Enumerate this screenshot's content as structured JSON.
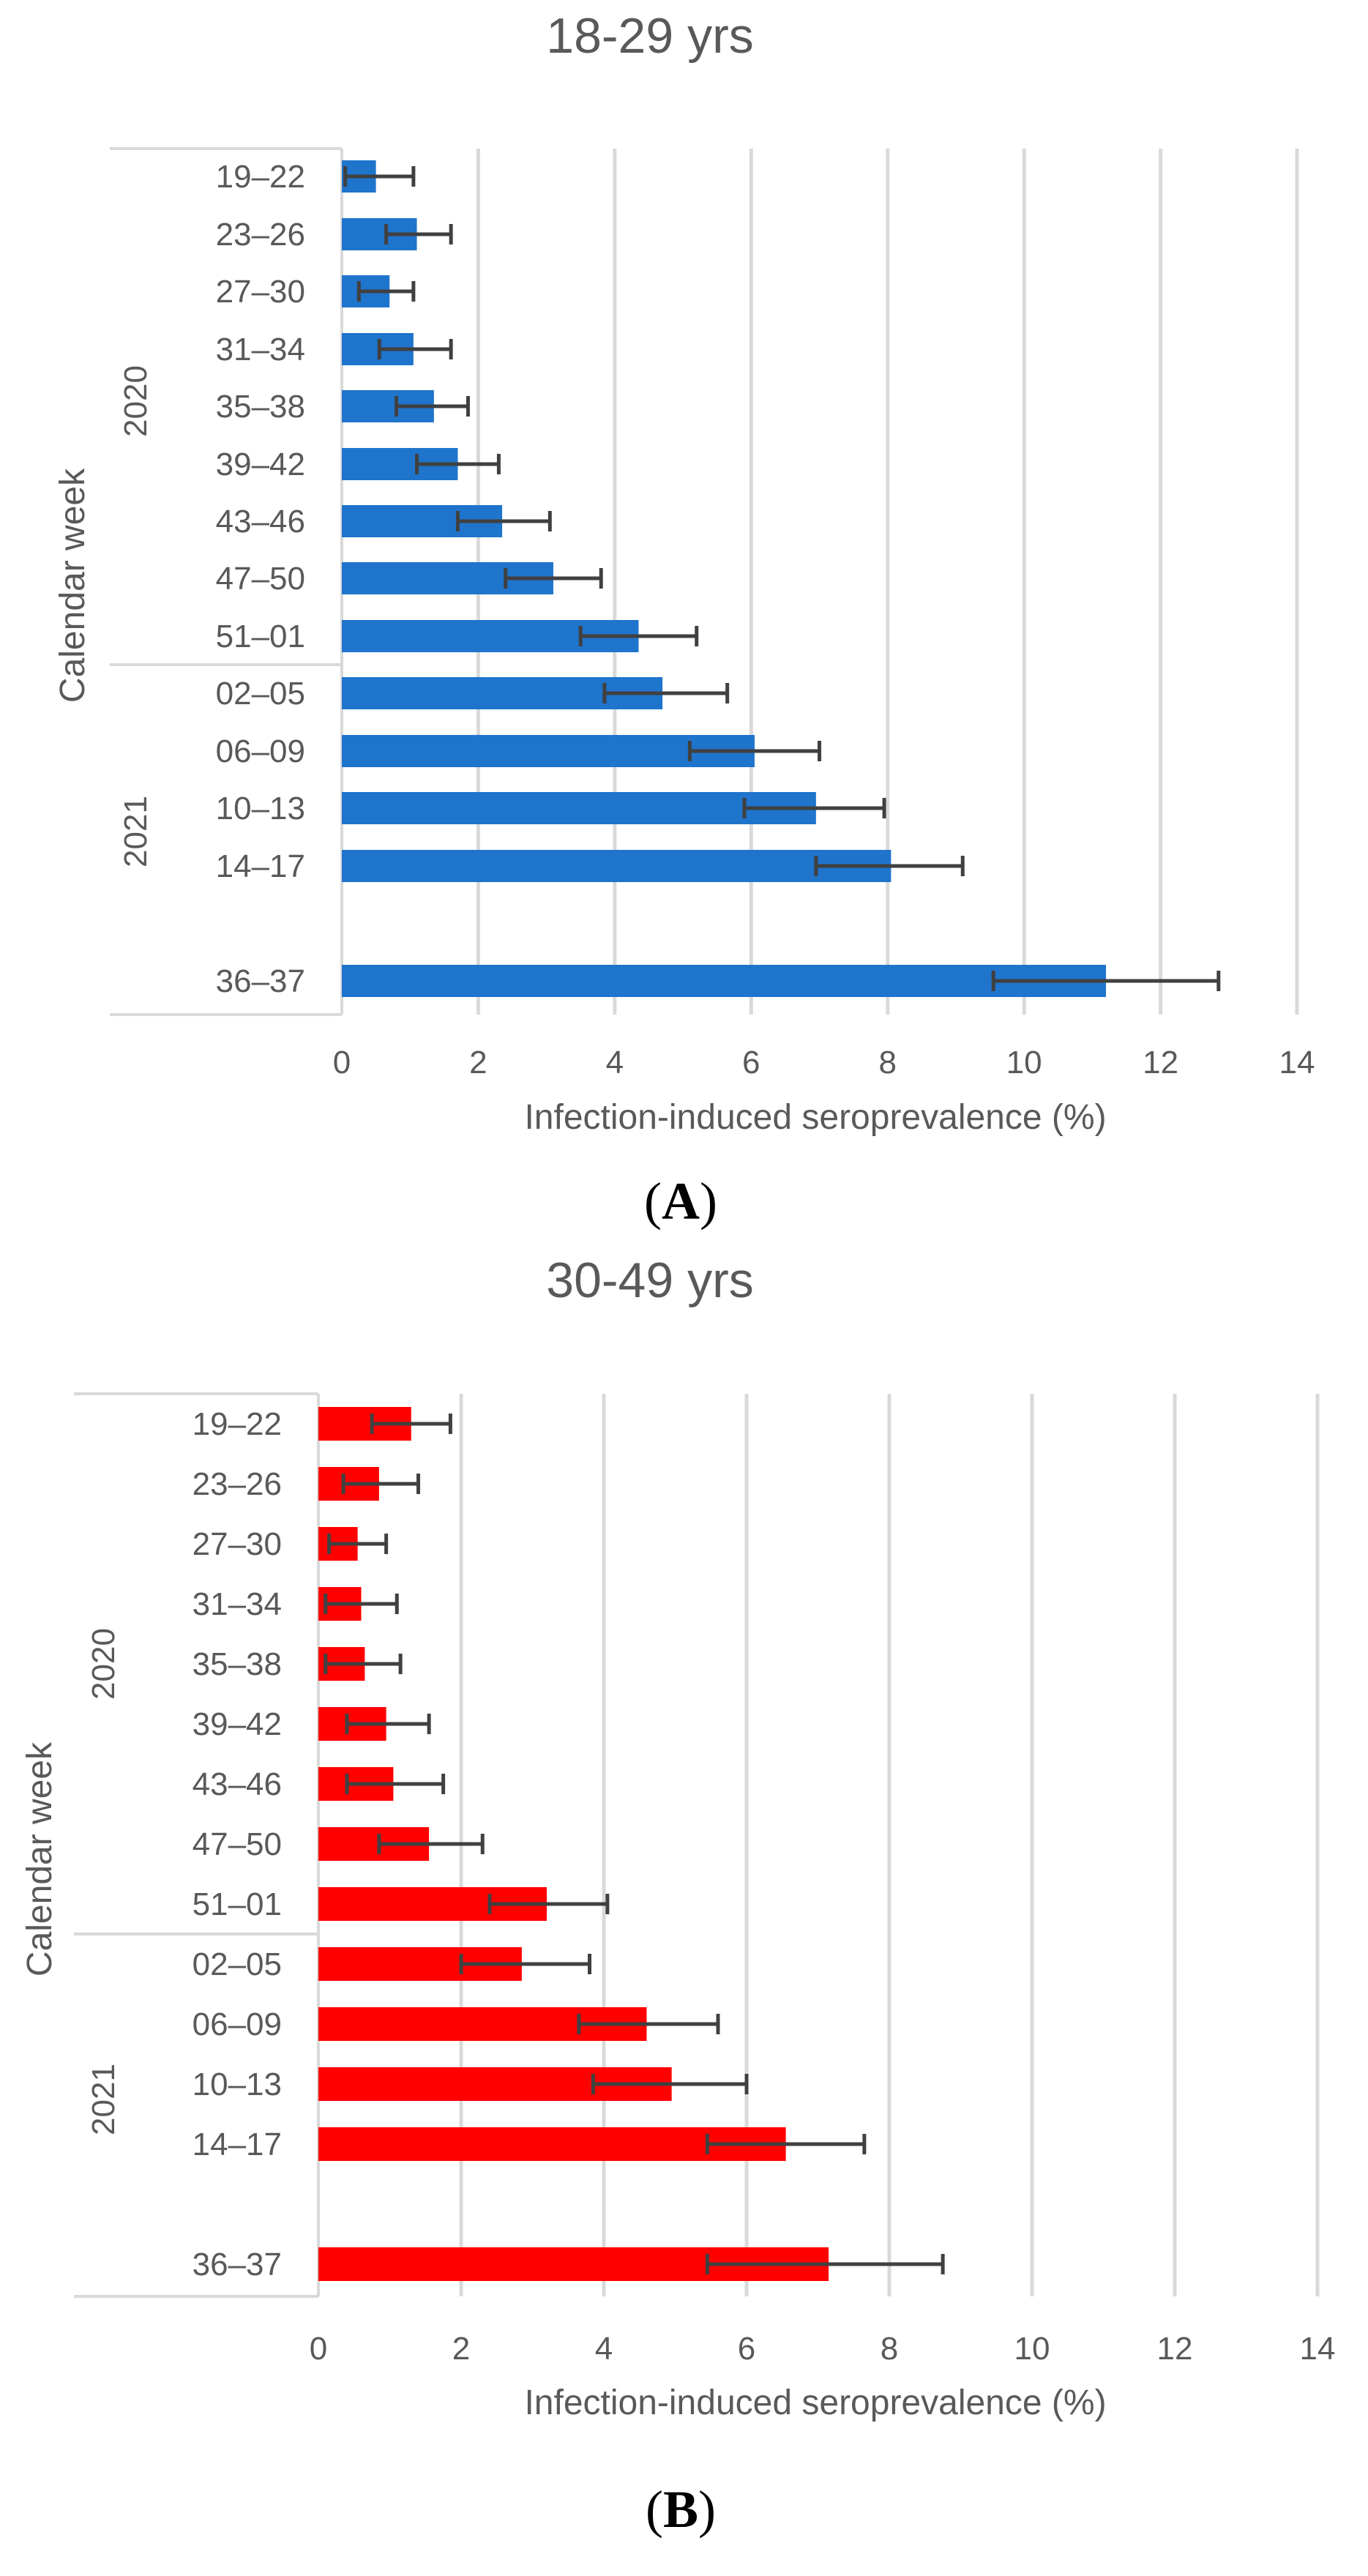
{
  "chart_data": [
    {
      "type": "bar",
      "orientation": "horizontal",
      "panel_label": "A",
      "title": "18-29 yrs",
      "xlabel": "Infection-induced seroprevalence (%)",
      "ylabel": "Calendar week",
      "xlim": [
        0,
        14
      ],
      "xticks": [
        0,
        2,
        4,
        6,
        8,
        10,
        12,
        14
      ],
      "grid": true,
      "color": "#1f74cc",
      "groups": [
        {
          "label": "2020",
          "categories": [
            "19–22",
            "23–26",
            "27–30",
            "31–34",
            "35–38",
            "39–42",
            "43–46",
            "47–50",
            "51–01"
          ]
        },
        {
          "label": "2021",
          "categories": [
            "02–05",
            "06–09",
            "10–13",
            "14–17",
            "36–37"
          ]
        }
      ],
      "categories": [
        "19–22",
        "23–26",
        "27–30",
        "31–34",
        "35–38",
        "39–42",
        "43–46",
        "47–50",
        "51–01",
        "02–05",
        "06–09",
        "10–13",
        "14–17",
        "36–37"
      ],
      "values": [
        0.5,
        1.1,
        0.7,
        1.05,
        1.35,
        1.7,
        2.35,
        3.1,
        4.35,
        4.7,
        6.05,
        6.95,
        8.05,
        11.2
      ],
      "error_low": [
        0.05,
        0.65,
        0.25,
        0.55,
        0.8,
        1.1,
        1.7,
        2.4,
        3.5,
        3.85,
        5.1,
        5.9,
        6.95,
        9.55
      ],
      "error_high": [
        1.05,
        1.6,
        1.05,
        1.6,
        1.85,
        2.3,
        3.05,
        3.8,
        5.2,
        5.65,
        7.0,
        7.95,
        9.1,
        12.85
      ]
    },
    {
      "type": "bar",
      "orientation": "horizontal",
      "panel_label": "B",
      "title": "30-49 yrs",
      "xlabel": "Infection-induced seroprevalence (%)",
      "ylabel": "Calendar week",
      "xlim": [
        0,
        14
      ],
      "xticks": [
        0,
        2,
        4,
        6,
        8,
        10,
        12,
        14
      ],
      "grid": true,
      "color": "#ff0000",
      "groups": [
        {
          "label": "2020",
          "categories": [
            "19–22",
            "23–26",
            "27–30",
            "31–34",
            "35–38",
            "39–42",
            "43–46",
            "47–50",
            "51–01"
          ]
        },
        {
          "label": "2021",
          "categories": [
            "02–05",
            "06–09",
            "10–13",
            "14–17",
            "36–37"
          ]
        }
      ],
      "categories": [
        "19–22",
        "23–26",
        "27–30",
        "31–34",
        "35–38",
        "39–42",
        "43–46",
        "47–50",
        "51–01",
        "02–05",
        "06–09",
        "10–13",
        "14–17",
        "36–37"
      ],
      "values": [
        1.3,
        0.85,
        0.55,
        0.6,
        0.65,
        0.95,
        1.05,
        1.55,
        3.2,
        2.85,
        4.6,
        4.95,
        6.55,
        7.15
      ],
      "error_low": [
        0.75,
        0.35,
        0.15,
        0.1,
        0.1,
        0.4,
        0.4,
        0.85,
        2.4,
        2.0,
        3.65,
        3.85,
        5.45,
        5.45
      ],
      "error_high": [
        1.85,
        1.4,
        0.95,
        1.1,
        1.15,
        1.55,
        1.75,
        2.3,
        4.05,
        3.8,
        5.6,
        6.0,
        7.65,
        8.75
      ]
    }
  ]
}
